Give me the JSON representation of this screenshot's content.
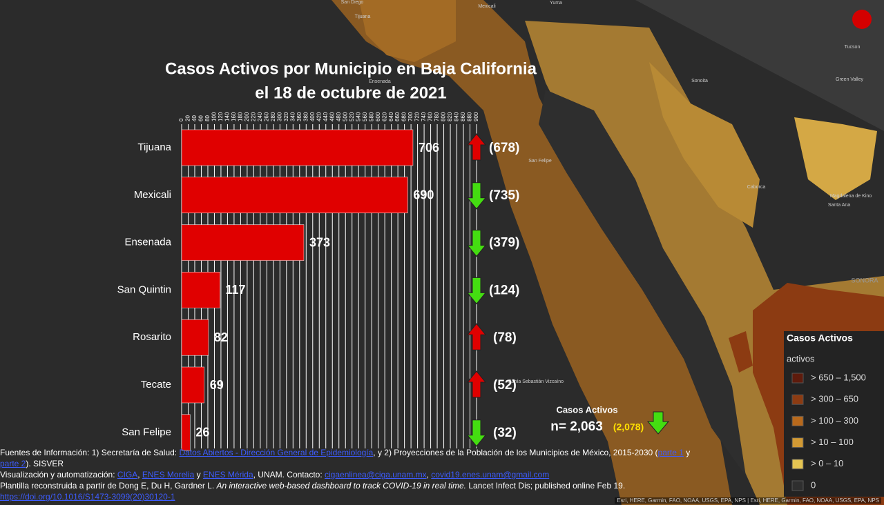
{
  "chart_data": {
    "type": "bar",
    "orientation": "horizontal",
    "title": "Casos Activos por Municipio en Baja California",
    "subtitle": "el 18 de octubre de 2021",
    "categories": [
      "Tijuana",
      "Mexicali",
      "Ensenada",
      "San Quintin",
      "Rosarito",
      "Tecate",
      "San Felipe"
    ],
    "values": [
      706,
      690,
      373,
      117,
      82,
      69,
      26
    ],
    "previous_values": [
      678,
      735,
      379,
      124,
      78,
      52,
      32
    ],
    "previous_value_labels": [
      "(678)",
      "(735)",
      "(379)",
      "(124)",
      "(78)",
      "(52)",
      "(32)"
    ],
    "color": "#e00000",
    "up_color": "#e00000",
    "down_color": "#44dd11",
    "xlim": [
      0,
      900
    ],
    "xticks": [
      0,
      20,
      40,
      60,
      80,
      100,
      120,
      140,
      160,
      180,
      200,
      220,
      240,
      260,
      280,
      300,
      320,
      340,
      360,
      380,
      400,
      420,
      440,
      460,
      480,
      500,
      520,
      540,
      560,
      580,
      600,
      620,
      640,
      660,
      680,
      700,
      720,
      740,
      760,
      780,
      800,
      820,
      840,
      860,
      880,
      900
    ],
    "grid": true,
    "total_title": "Casos Activos",
    "total_text": "n= 2,063",
    "total_previous_text": "(2,078)"
  },
  "map": {
    "places": [
      "San Diego",
      "Tijuana",
      "Mexicali",
      "Yuma",
      "Tucson",
      "Sonoita",
      "Green Valley",
      "Caborca",
      "Magdalena de Kino",
      "Santa Ana",
      "SONORA",
      "San Felipe",
      "Ensenada",
      "Bahía Sebastián Vizcaíno"
    ],
    "attribution": "Esri, HERE, Garmin, FAO, NOAA, USGS, EPA, NPS | Esri, HERE, Garmin, FAO, NOAA, USGS, EPA, NPS"
  },
  "legend": {
    "title": "Casos Activos",
    "subtitle": "activos",
    "items": [
      {
        "label": "> 650 – 1,500",
        "color": "#5e1b0c"
      },
      {
        "label": "> 300 – 650",
        "color": "#8c3b12"
      },
      {
        "label": "> 100 – 300",
        "color": "#b8691c"
      },
      {
        "label": "> 10 – 100",
        "color": "#d29a34"
      },
      {
        "label": "> 0 – 10",
        "color": "#e6c552"
      },
      {
        "label": "0",
        "color": "#2f2f2f"
      }
    ]
  },
  "footer": {
    "lines": [
      [
        {
          "text": "Fuentes de Información: 1) Secretaría de Salud: "
        },
        {
          "text": "Datos Abiertos - Dirección General de Epidemiología",
          "link": true
        },
        {
          "text": ", y 2) Proyecciones de la Población de los Municipios de México, 2015-2030 ("
        },
        {
          "text": "parte 1",
          "link": true
        },
        {
          "text": " y "
        },
        {
          "text": "parte 2",
          "link": true
        },
        {
          "text": "). SISVER"
        }
      ],
      [
        {
          "text": "Visualización y automatización: "
        },
        {
          "text": "CIGA",
          "link": true
        },
        {
          "text": ", "
        },
        {
          "text": "ENES Morelia",
          "link": true
        },
        {
          "text": " y "
        },
        {
          "text": "ENES Mérida",
          "link": true
        },
        {
          "text": ", UNAM. Contacto: "
        },
        {
          "text": "cigaenlinea@ciga.unam.mx",
          "link": true
        },
        {
          "text": ", "
        },
        {
          "text": "covid19.enes.unam@gmail.com",
          "link": true
        }
      ],
      [
        {
          "text": "Plantilla reconstruida a partir de Dong E, Du H, Gardner L. "
        },
        {
          "text": "An interactive web-based dashboard to track COVID-19 in real time.",
          "italic": true
        },
        {
          "text": " Lancet Infect Dis; published online Feb 19. "
        },
        {
          "text": "https://doi.org/10.1016/S1473-3099(20)30120-1",
          "link": true
        }
      ]
    ]
  }
}
